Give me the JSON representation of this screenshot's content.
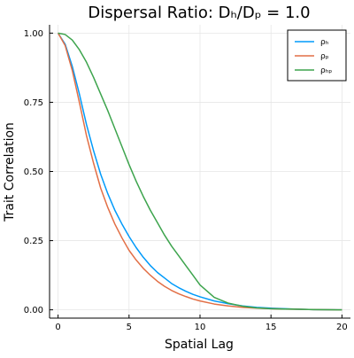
{
  "chart_data": {
    "type": "line",
    "title": "Dispersal Ratio: Dₕ/Dₚ = 1.0",
    "xlabel": "Spatial Lag",
    "ylabel": "Trait Correlation",
    "xlim": [
      -0.6,
      20.6
    ],
    "ylim": [
      -0.03,
      1.03
    ],
    "x_ticks": [
      0,
      5,
      10,
      15,
      20
    ],
    "y_ticks": [
      0.0,
      0.25,
      0.5,
      0.75,
      1.0
    ],
    "x_tick_labels": [
      "0",
      "5",
      "10",
      "15",
      "20"
    ],
    "y_tick_labels": [
      "0.00",
      "0.25",
      "0.50",
      "0.75",
      "1.00"
    ],
    "grid": true,
    "legend_position": "top-right",
    "x": [
      0,
      0.5,
      1,
      1.5,
      2,
      2.5,
      3,
      3.5,
      4,
      4.5,
      5,
      5.5,
      6,
      6.5,
      7,
      7.5,
      8,
      8.5,
      9,
      9.5,
      10,
      11,
      12,
      13,
      14,
      15,
      16,
      17,
      18,
      19,
      20
    ],
    "series": [
      {
        "name": "ρₕ",
        "color": "#009AFA",
        "values": [
          1.0,
          0.96,
          0.88,
          0.78,
          0.67,
          0.575,
          0.49,
          0.42,
          0.36,
          0.31,
          0.265,
          0.225,
          0.19,
          0.16,
          0.135,
          0.115,
          0.095,
          0.08,
          0.067,
          0.056,
          0.047,
          0.032,
          0.022,
          0.014,
          0.009,
          0.006,
          0.004,
          0.002,
          0.001,
          0.0005,
          0.0
        ]
      },
      {
        "name": "ρₚ",
        "color": "#E26F46",
        "values": [
          1.0,
          0.955,
          0.865,
          0.75,
          0.63,
          0.53,
          0.44,
          0.37,
          0.31,
          0.26,
          0.215,
          0.18,
          0.15,
          0.125,
          0.103,
          0.085,
          0.07,
          0.058,
          0.048,
          0.039,
          0.032,
          0.021,
          0.014,
          0.009,
          0.006,
          0.004,
          0.003,
          0.002,
          0.001,
          0.0005,
          0.0
        ]
      },
      {
        "name": "ρₕₚ",
        "color": "#3DA44D",
        "values": [
          1.0,
          0.995,
          0.975,
          0.94,
          0.895,
          0.84,
          0.78,
          0.72,
          0.655,
          0.59,
          0.525,
          0.465,
          0.41,
          0.36,
          0.315,
          0.27,
          0.23,
          0.195,
          0.16,
          0.125,
          0.09,
          0.045,
          0.024,
          0.013,
          0.007,
          0.004,
          0.003,
          0.002,
          0.001,
          0.0005,
          0.0
        ]
      }
    ]
  }
}
